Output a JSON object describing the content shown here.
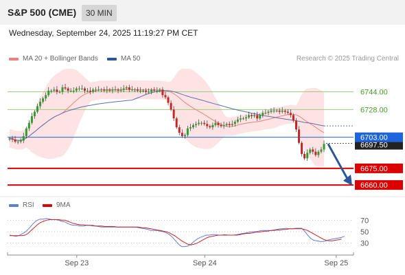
{
  "header": {
    "title": "S&P 500 (CME)",
    "timeframe": "30 MIN"
  },
  "datetime": "Wednesday, September 24, 2025 11:19:27 PM CET",
  "legend": {
    "ma20": {
      "label": "MA 20 + Bollinger Bands",
      "color": "#f08080"
    },
    "ma50": {
      "label": "MA 50",
      "color": "#2b5797"
    }
  },
  "credit": "Research © 2025 Trading Central",
  "rsi_legend": {
    "rsi": {
      "label": "RSI",
      "color": "#5b7fd6"
    },
    "ma9": {
      "label": "9MA",
      "color": "#e00000"
    }
  },
  "chart_data": {
    "type": "candlestick",
    "price_ylim": [
      6652,
      6766
    ],
    "levels": [
      {
        "value": 6744.0,
        "label": "6744.00",
        "kind": "resistance",
        "color": "#9acd7f"
      },
      {
        "value": 6728.0,
        "label": "6728.00",
        "kind": "resistance",
        "color": "#9acd7f"
      },
      {
        "value": 6703.0,
        "label": "6703.00",
        "kind": "pivot",
        "color": "#1e64dc"
      },
      {
        "value": 6675.0,
        "label": "6675.00",
        "kind": "support",
        "color": "#dd0000"
      },
      {
        "value": 6660.0,
        "label": "6660.00",
        "kind": "support",
        "color": "#dd0000"
      }
    ],
    "last_price": {
      "value": 6697.5,
      "label": "6697.50"
    },
    "x_labels": [
      "Sep 23",
      "Sep 24",
      "Sep 25"
    ],
    "x_label_positions": [
      0.2,
      0.57,
      0.95
    ],
    "forecast_arrow": {
      "from": 6697,
      "to": 6662
    },
    "closes": [
      6702,
      6701,
      6699,
      6699,
      6700,
      6704,
      6711,
      6716,
      6722,
      6726,
      6731,
      6735,
      6738,
      6741,
      6745,
      6745,
      6746,
      6744,
      6744,
      6748,
      6747,
      6745,
      6745,
      6745,
      6747,
      6747,
      6747,
      6745,
      6745,
      6744,
      6746,
      6746,
      6746,
      6746,
      6745,
      6746,
      6745,
      6746,
      6746,
      6745,
      6746,
      6747,
      6748,
      6746,
      6746,
      6746,
      6745,
      6745,
      6745,
      6744,
      6744,
      6746,
      6745,
      6745,
      6746,
      6741,
      6739,
      6734,
      6728,
      6720,
      6712,
      6707,
      6704,
      6705,
      6711,
      6712,
      6714,
      6715,
      6716,
      6716,
      6715,
      6713,
      6712,
      6714,
      6716,
      6714,
      6713,
      6714,
      6715,
      6714,
      6715,
      6717,
      6719,
      6720,
      6720,
      6721,
      6723,
      6722,
      6723,
      6720,
      6723,
      6725,
      6725,
      6726,
      6727,
      6727,
      6727,
      6726,
      6727,
      6726,
      6725,
      6723,
      6718,
      6710,
      6698,
      6688,
      6684,
      6689,
      6692,
      6690,
      6687,
      6690,
      6692,
      6697
    ],
    "rsi": {
      "ylim": [
        20,
        80
      ],
      "ticks": [
        70,
        50,
        30
      ],
      "rsi_values": [
        44,
        43,
        42,
        43,
        46,
        49,
        54,
        60,
        66,
        70,
        72,
        72,
        73,
        72,
        71,
        71,
        70,
        68,
        67,
        64,
        62,
        61,
        61,
        60,
        60,
        61,
        61,
        60,
        60,
        59,
        58,
        58,
        58,
        58,
        58,
        58,
        58,
        58,
        58,
        58,
        58,
        58,
        57,
        56,
        55,
        54,
        52,
        52,
        52,
        51,
        50,
        48,
        45,
        40,
        34,
        28,
        24,
        24,
        25,
        28,
        33,
        37,
        40,
        42,
        44,
        44,
        45,
        45,
        44,
        44,
        45,
        44,
        44,
        44,
        45,
        46,
        47,
        48,
        49,
        50,
        50,
        51,
        52,
        52,
        52,
        52,
        53,
        54,
        55,
        55,
        56,
        55,
        55,
        56,
        56,
        56,
        51,
        44,
        38,
        35,
        34,
        33,
        33,
        34,
        36,
        37,
        38,
        39,
        40,
        42
      ],
      "ma9_values": [
        43,
        43,
        43,
        43,
        43,
        44,
        47,
        52,
        57,
        62,
        66,
        68,
        70,
        71,
        71,
        71,
        71,
        70,
        70,
        68,
        66,
        64,
        63,
        62,
        62,
        61,
        61,
        61,
        60,
        60,
        60,
        59,
        59,
        59,
        59,
        58,
        58,
        58,
        58,
        58,
        58,
        58,
        58,
        57,
        57,
        56,
        55,
        54,
        53,
        52,
        51,
        50,
        48,
        45,
        42,
        38,
        34,
        31,
        28,
        27,
        28,
        30,
        33,
        36,
        39,
        41,
        42,
        43,
        44,
        44,
        44,
        44,
        44,
        44,
        44,
        45,
        46,
        47,
        47,
        48,
        49,
        49,
        50,
        51,
        51,
        52,
        52,
        53,
        53,
        54,
        54,
        55,
        55,
        55,
        55,
        55,
        54,
        52,
        49,
        46,
        43,
        40,
        37,
        35,
        34,
        34,
        35,
        36,
        37
      ]
    }
  }
}
